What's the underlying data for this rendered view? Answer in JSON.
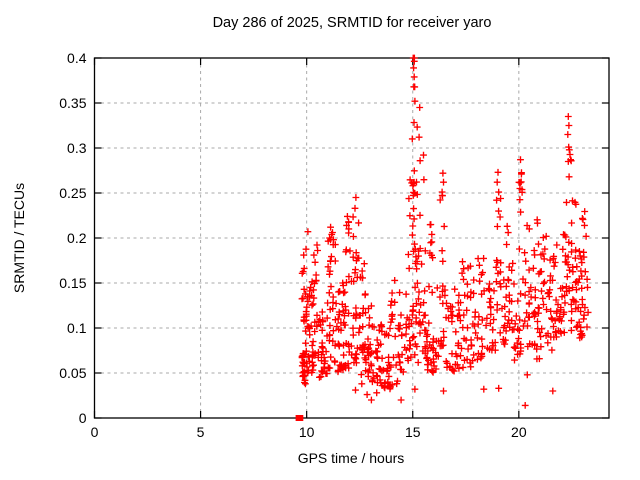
{
  "chart_data": {
    "type": "scatter",
    "title": "Day 286 of 2025, SRMTID for receiver yaro",
    "xlabel": "GPS time / hours",
    "ylabel": "SRMTID / TECUs",
    "xlim": [
      0,
      24.25
    ],
    "ylim": [
      0,
      0.4
    ],
    "xticks": [
      0,
      5,
      10,
      15,
      20
    ],
    "xtick_labels": [
      "0",
      "5",
      "10",
      "15",
      "20"
    ],
    "yticks": [
      0,
      0.05,
      0.1,
      0.15,
      0.2,
      0.25,
      0.3,
      0.35,
      0.4
    ],
    "ytick_labels": [
      "0",
      "0.05",
      "0.1",
      "0.15",
      "0.2",
      "0.25",
      "0.3",
      "0.35",
      "0.4"
    ],
    "grid": true,
    "legend": null,
    "marker": "plus",
    "colors": {
      "marker": "#ff0000",
      "grid": "#a9a9a9",
      "axis": "#000000",
      "background": "#ffffff",
      "text": "#000000"
    },
    "data_x_range": [
      9.6,
      23.3
    ],
    "seed": 1337,
    "clusters": [
      [
        9.78,
        10.02,
        0.05,
        0.205,
        38,
        1.6,
        2
      ],
      [
        9.8,
        9.96,
        0.035,
        0.062,
        8,
        1.0,
        1
      ],
      [
        10.02,
        10.4,
        0.05,
        0.155,
        34,
        1.7,
        3
      ],
      [
        10.35,
        10.55,
        0.09,
        0.195,
        13,
        1.2,
        2
      ],
      [
        10.55,
        11.0,
        0.045,
        0.125,
        30,
        1.4,
        3
      ],
      [
        11.0,
        11.35,
        0.055,
        0.21,
        34,
        1.5,
        3
      ],
      [
        11.35,
        11.75,
        0.05,
        0.15,
        28,
        1.4,
        3
      ],
      [
        11.75,
        12.1,
        0.055,
        0.225,
        32,
        1.5,
        3
      ],
      [
        12.1,
        12.45,
        0.055,
        0.24,
        28,
        1.6,
        3
      ],
      [
        12.45,
        13.05,
        0.045,
        0.125,
        34,
        1.3,
        4
      ],
      [
        12.55,
        12.8,
        0.125,
        0.18,
        7,
        1.0,
        2
      ],
      [
        13.05,
        13.65,
        0.038,
        0.105,
        30,
        1.2,
        4
      ],
      [
        13.65,
        14.3,
        0.032,
        0.1,
        28,
        1.2,
        4
      ],
      [
        13.9,
        14.15,
        0.1,
        0.18,
        9,
        1.1,
        2
      ],
      [
        14.3,
        14.78,
        0.05,
        0.14,
        24,
        1.3,
        3
      ],
      [
        14.78,
        15.28,
        0.06,
        0.27,
        46,
        1.5,
        3
      ],
      [
        14.97,
        15.2,
        0.25,
        0.4,
        12,
        1.0,
        2
      ],
      [
        15.28,
        15.62,
        0.07,
        0.3,
        24,
        1.7,
        2
      ],
      [
        15.62,
        16.25,
        0.05,
        0.16,
        34,
        1.4,
        4
      ],
      [
        15.8,
        15.95,
        0.17,
        0.215,
        6,
        1.0,
        1
      ],
      [
        16.28,
        16.55,
        0.08,
        0.26,
        19,
        1.5,
        2
      ],
      [
        16.55,
        17.3,
        0.05,
        0.15,
        40,
        1.3,
        5
      ],
      [
        17.3,
        17.85,
        0.055,
        0.175,
        28,
        1.3,
        3
      ],
      [
        17.85,
        18.55,
        0.065,
        0.195,
        30,
        1.3,
        4
      ],
      [
        18.88,
        19.12,
        0.12,
        0.275,
        13,
        1.1,
        2
      ],
      [
        18.55,
        18.9,
        0.07,
        0.16,
        18,
        1.2,
        2
      ],
      [
        19.12,
        19.42,
        0.08,
        0.185,
        16,
        1.2,
        2
      ],
      [
        19.42,
        19.65,
        0.1,
        0.215,
        12,
        1.2,
        2
      ],
      [
        19.65,
        20.1,
        0.06,
        0.195,
        24,
        1.2,
        3
      ],
      [
        20.0,
        20.18,
        0.18,
        0.287,
        9,
        1.1,
        1
      ],
      [
        20.18,
        21.0,
        0.065,
        0.185,
        40,
        1.2,
        5
      ],
      [
        21.0,
        21.7,
        0.075,
        0.205,
        38,
        1.2,
        4
      ],
      [
        21.7,
        22.25,
        0.09,
        0.205,
        34,
        1.1,
        4
      ],
      [
        22.25,
        22.55,
        0.14,
        0.33,
        17,
        1.2,
        2
      ],
      [
        22.45,
        23.0,
        0.09,
        0.24,
        34,
        1.1,
        3
      ],
      [
        22.85,
        23.0,
        0.072,
        0.1,
        6,
        1.0,
        1
      ],
      [
        23.0,
        23.28,
        0.1,
        0.23,
        17,
        1.1,
        2
      ],
      [
        20.3,
        21.0,
        0.185,
        0.222,
        6,
        1.0,
        3
      ]
    ],
    "outlier_points": [
      [
        15.02,
        0.4
      ],
      [
        15.08,
        0.4
      ],
      [
        15.04,
        0.389
      ],
      [
        15.07,
        0.379
      ],
      [
        15.05,
        0.368
      ],
      [
        15.1,
        0.352
      ],
      [
        15.33,
        0.345
      ],
      [
        15.3,
        0.312
      ],
      [
        22.33,
        0.335
      ],
      [
        22.36,
        0.325
      ],
      [
        22.31,
        0.315
      ],
      [
        22.35,
        0.301
      ],
      [
        22.38,
        0.298
      ],
      [
        22.33,
        0.285
      ],
      [
        22.37,
        0.268
      ],
      [
        16.42,
        0.272
      ],
      [
        16.45,
        0.262
      ],
      [
        16.4,
        0.247
      ],
      [
        19.02,
        0.273
      ],
      [
        18.98,
        0.262
      ],
      [
        19.05,
        0.251
      ],
      [
        18.95,
        0.242
      ],
      [
        19.45,
        0.213
      ],
      [
        19.5,
        0.206
      ],
      [
        20.08,
        0.287
      ],
      [
        20.12,
        0.271
      ],
      [
        20.05,
        0.255
      ],
      [
        12.32,
        0.245
      ],
      [
        12.28,
        0.233
      ],
      [
        11.92,
        0.224
      ],
      [
        11.88,
        0.214
      ],
      [
        10.06,
        0.207
      ],
      [
        11.13,
        0.212
      ],
      [
        11.18,
        0.204
      ],
      [
        15.85,
        0.215
      ],
      [
        15.9,
        0.204
      ],
      [
        12.3,
        0.031
      ],
      [
        12.6,
        0.038
      ],
      [
        12.85,
        0.026
      ],
      [
        13.05,
        0.02
      ],
      [
        13.1,
        0.042
      ],
      [
        13.3,
        0.028
      ],
      [
        13.55,
        0.036
      ],
      [
        14.45,
        0.02
      ],
      [
        15.1,
        0.032
      ],
      [
        16.45,
        0.03
      ],
      [
        18.35,
        0.032
      ],
      [
        19.05,
        0.033
      ],
      [
        20.3,
        0.014
      ],
      [
        20.4,
        0.048
      ],
      [
        21.6,
        0.03
      ]
    ],
    "zero_points": [
      [
        9.62,
        0
      ],
      [
        9.7,
        0
      ]
    ]
  }
}
